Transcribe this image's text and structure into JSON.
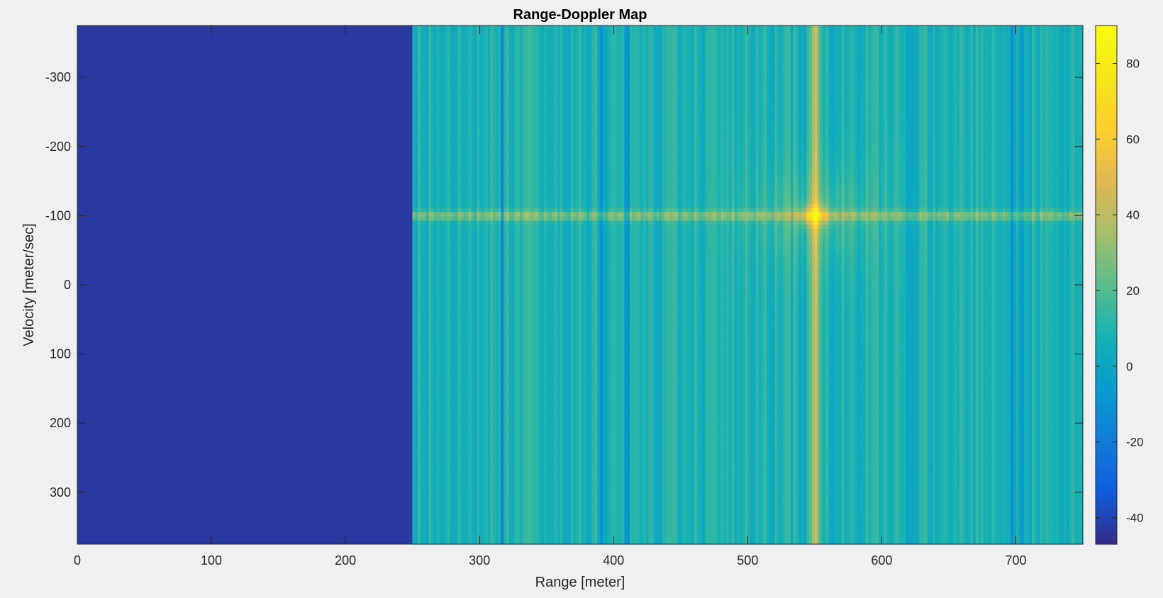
{
  "chart_data": {
    "type": "heatmap",
    "title": "Range-Doppler Map",
    "xlabel": "Range [meter]",
    "ylabel": "Velocity [meter/sec]",
    "xlim": [
      0,
      750
    ],
    "ylim": [
      -375,
      375
    ],
    "y_direction": "reversed",
    "xticks": [
      0,
      100,
      200,
      300,
      400,
      500,
      600,
      700
    ],
    "yticks": [
      -300,
      -200,
      -100,
      0,
      100,
      200,
      300
    ],
    "colormap": "parula",
    "clim": [
      -47,
      90
    ],
    "colorbar_ticks": [
      -40,
      -20,
      0,
      20,
      40,
      60,
      80
    ],
    "colorbar_location": "right",
    "grid": false,
    "features": {
      "noise_floor_value": -43,
      "noise_floor_range": [
        0,
        250
      ],
      "clutter_range": [
        250,
        750
      ],
      "clutter_level": 8,
      "peak": {
        "range": 550,
        "velocity": -100,
        "value": 85
      },
      "range_cut_range": 550,
      "velocity_cut": -100,
      "deep_nulls_range": [
        317,
        390,
        410,
        697,
        705
      ]
    }
  }
}
